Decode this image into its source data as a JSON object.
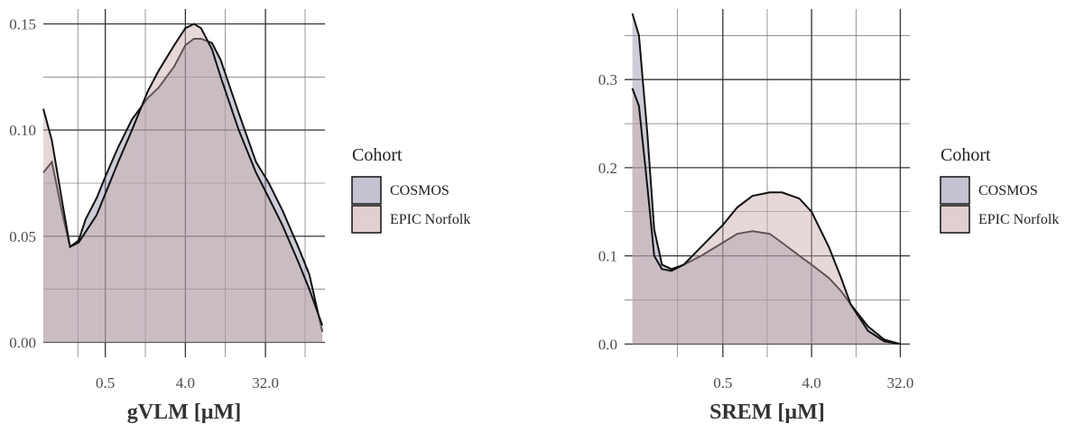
{
  "chart_data": [
    {
      "type": "area",
      "xlabel": "gVLM [µM]",
      "x_scale": "log2",
      "x_ticks": [
        0.5,
        4.0,
        32.0
      ],
      "x_tick_labels": [
        "0.5",
        "4.0",
        "32.0"
      ],
      "xlim": [
        0.1,
        150
      ],
      "y_ticks": [
        0.0,
        0.05,
        0.1,
        0.15
      ],
      "y_tick_labels": [
        "0.00",
        "0.05",
        "0.10",
        "0.15"
      ],
      "ylim": [
        -0.007,
        0.157
      ],
      "grid": true,
      "legend_title": "Cohort",
      "legend_position": "right",
      "series": [
        {
          "name": "COSMOS",
          "color": "#9090aa",
          "x": [
            0.1,
            0.125,
            0.165,
            0.2,
            0.25,
            0.3,
            0.4,
            0.5,
            0.7,
            1.0,
            1.5,
            2.0,
            3.0,
            4.0,
            5.0,
            6.0,
            8.0,
            10.0,
            16.0,
            25.0,
            35.0,
            50.0,
            75.0,
            100.0,
            140.0
          ],
          "y": [
            0.08,
            0.085,
            0.06,
            0.045,
            0.048,
            0.058,
            0.068,
            0.078,
            0.092,
            0.105,
            0.115,
            0.12,
            0.13,
            0.14,
            0.143,
            0.143,
            0.141,
            0.133,
            0.108,
            0.085,
            0.075,
            0.062,
            0.045,
            0.032,
            0.005
          ]
        },
        {
          "name": "EPIC Norfolk",
          "color": "#c8a8a8",
          "x": [
            0.1,
            0.125,
            0.165,
            0.2,
            0.25,
            0.3,
            0.4,
            0.5,
            0.7,
            1.0,
            1.5,
            2.0,
            3.0,
            4.0,
            5.0,
            6.0,
            8.0,
            10.0,
            16.0,
            25.0,
            35.0,
            50.0,
            75.0,
            100.0,
            140.0
          ],
          "y": [
            0.11,
            0.095,
            0.065,
            0.045,
            0.047,
            0.052,
            0.06,
            0.07,
            0.085,
            0.1,
            0.118,
            0.128,
            0.14,
            0.148,
            0.15,
            0.148,
            0.138,
            0.125,
            0.1,
            0.08,
            0.068,
            0.055,
            0.038,
            0.025,
            0.008
          ]
        }
      ]
    },
    {
      "type": "area",
      "xlabel": "SREM [µM]",
      "x_scale": "log2",
      "x_ticks": [
        0.5,
        4.0,
        32.0
      ],
      "x_tick_labels": [
        "0.5",
        "4.0",
        "32.0"
      ],
      "xlim": [
        0.05,
        40
      ],
      "y_ticks": [
        0.0,
        0.1,
        0.2,
        0.3
      ],
      "y_tick_labels": [
        "0.0",
        "0.1",
        "0.2",
        "0.3"
      ],
      "ylim": [
        -0.015,
        0.38
      ],
      "grid": true,
      "legend_title": "Cohort",
      "legend_position": "right",
      "series": [
        {
          "name": "COSMOS",
          "color": "#9090aa",
          "x": [
            0.06,
            0.07,
            0.085,
            0.1,
            0.12,
            0.15,
            0.2,
            0.3,
            0.5,
            0.7,
            1.0,
            1.5,
            2.0,
            3.0,
            4.0,
            6.0,
            8.0,
            10.0,
            15.0,
            22.0,
            32.0
          ],
          "y": [
            0.375,
            0.35,
            0.24,
            0.13,
            0.09,
            0.085,
            0.09,
            0.1,
            0.115,
            0.125,
            0.128,
            0.125,
            0.115,
            0.1,
            0.09,
            0.075,
            0.06,
            0.045,
            0.02,
            0.005,
            0.0
          ]
        },
        {
          "name": "EPIC Norfolk",
          "color": "#c8a8a8",
          "x": [
            0.06,
            0.07,
            0.085,
            0.1,
            0.12,
            0.15,
            0.2,
            0.3,
            0.5,
            0.7,
            1.0,
            1.5,
            2.0,
            3.0,
            4.0,
            6.0,
            8.0,
            10.0,
            15.0,
            22.0,
            32.0
          ],
          "y": [
            0.29,
            0.27,
            0.18,
            0.1,
            0.085,
            0.083,
            0.09,
            0.11,
            0.135,
            0.155,
            0.168,
            0.172,
            0.172,
            0.165,
            0.15,
            0.11,
            0.075,
            0.045,
            0.015,
            0.003,
            0.0
          ]
        }
      ]
    }
  ]
}
